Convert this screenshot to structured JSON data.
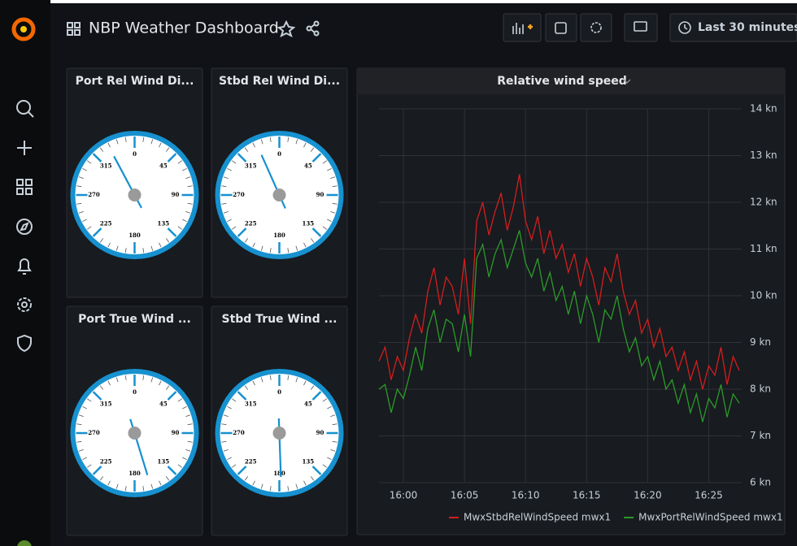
{
  "header": {
    "title": "NBP Weather Dashboard",
    "time_range": "Last 30 minutes"
  },
  "gauges": {
    "scale": [
      0,
      45,
      90,
      135,
      180,
      225,
      270,
      315
    ],
    "panels": [
      {
        "title": "Port Rel Wind Di...",
        "value": 332
      },
      {
        "title": "Stbd Rel Wind Di...",
        "value": 336
      },
      {
        "title": "Port True Wind ...",
        "value": 163
      },
      {
        "title": "Stbd True Wind ...",
        "value": 178
      }
    ]
  },
  "chart_data": {
    "type": "line",
    "title": "Relative wind speed",
    "x": [
      958,
      958.5,
      959,
      959.5,
      960,
      960.5,
      961,
      961.5,
      962,
      962.5,
      963,
      963.5,
      964,
      964.5,
      965,
      965.5,
      966,
      966.5,
      967,
      967.5,
      968,
      968.5,
      969,
      969.5,
      970,
      970.5,
      971,
      971.5,
      972,
      972.5,
      973,
      973.5,
      974,
      974.5,
      975,
      975.5,
      976,
      976.5,
      977,
      977.5,
      978,
      978.5,
      979,
      979.5,
      980,
      980.5,
      981,
      981.5,
      982,
      982.5,
      983,
      983.5,
      984,
      984.5,
      985,
      985.5,
      986,
      986.5,
      987,
      987.5
    ],
    "xlim": [
      958,
      987.7
    ],
    "xticks": [
      {
        "value": 960,
        "label": "16:00"
      },
      {
        "value": 965,
        "label": "16:05"
      },
      {
        "value": 970,
        "label": "16:10"
      },
      {
        "value": 975,
        "label": "16:15"
      },
      {
        "value": 980,
        "label": "16:20"
      },
      {
        "value": 985,
        "label": "16:25"
      }
    ],
    "ylim": [
      6,
      14
    ],
    "yticks": [
      {
        "value": 6,
        "label": "6 kn"
      },
      {
        "value": 7,
        "label": "7 kn"
      },
      {
        "value": 8,
        "label": "8 kn"
      },
      {
        "value": 9,
        "label": "9 kn"
      },
      {
        "value": 10,
        "label": "10 kn"
      },
      {
        "value": 11,
        "label": "11 kn"
      },
      {
        "value": 12,
        "label": "12 kn"
      },
      {
        "value": 13,
        "label": "13 kn"
      },
      {
        "value": 14,
        "label": "14 kn"
      }
    ],
    "grid": true,
    "series": [
      {
        "name": "MwxStbdRelWindSpeed mwx1",
        "color": "#d41e1e",
        "values": [
          8.6,
          8.9,
          8.2,
          8.7,
          8.4,
          9.1,
          9.6,
          9.2,
          10.1,
          10.6,
          9.8,
          10.4,
          10.2,
          9.6,
          10.8,
          9.4,
          11.6,
          12.0,
          11.3,
          11.8,
          12.2,
          11.4,
          11.9,
          12.6,
          11.6,
          11.2,
          11.7,
          10.9,
          11.4,
          10.8,
          11.1,
          10.5,
          10.9,
          10.2,
          10.8,
          10.4,
          9.8,
          10.6,
          10.3,
          10.9,
          10.1,
          9.6,
          9.9,
          9.2,
          9.5,
          8.9,
          9.3,
          8.7,
          8.9,
          8.4,
          8.8,
          8.2,
          8.6,
          8.0,
          8.5,
          8.3,
          8.9,
          8.1,
          8.7,
          8.4
        ]
      },
      {
        "name": "MwxPortRelWindSpeed mwx1",
        "color": "#2a9b2a",
        "values": [
          8.0,
          8.1,
          7.5,
          8.0,
          7.8,
          8.3,
          8.9,
          8.4,
          9.3,
          9.7,
          9.0,
          9.5,
          9.4,
          8.8,
          9.6,
          8.7,
          10.8,
          11.1,
          10.4,
          10.9,
          11.2,
          10.6,
          11.0,
          11.4,
          10.7,
          10.4,
          10.8,
          10.1,
          10.5,
          9.9,
          10.2,
          9.6,
          10.1,
          9.4,
          10.0,
          9.6,
          9.0,
          9.7,
          9.5,
          10.0,
          9.3,
          8.8,
          9.1,
          8.5,
          8.7,
          8.2,
          8.6,
          8.0,
          8.2,
          7.7,
          8.1,
          7.5,
          7.9,
          7.3,
          7.8,
          7.6,
          8.1,
          7.4,
          7.9,
          7.7
        ]
      }
    ]
  }
}
